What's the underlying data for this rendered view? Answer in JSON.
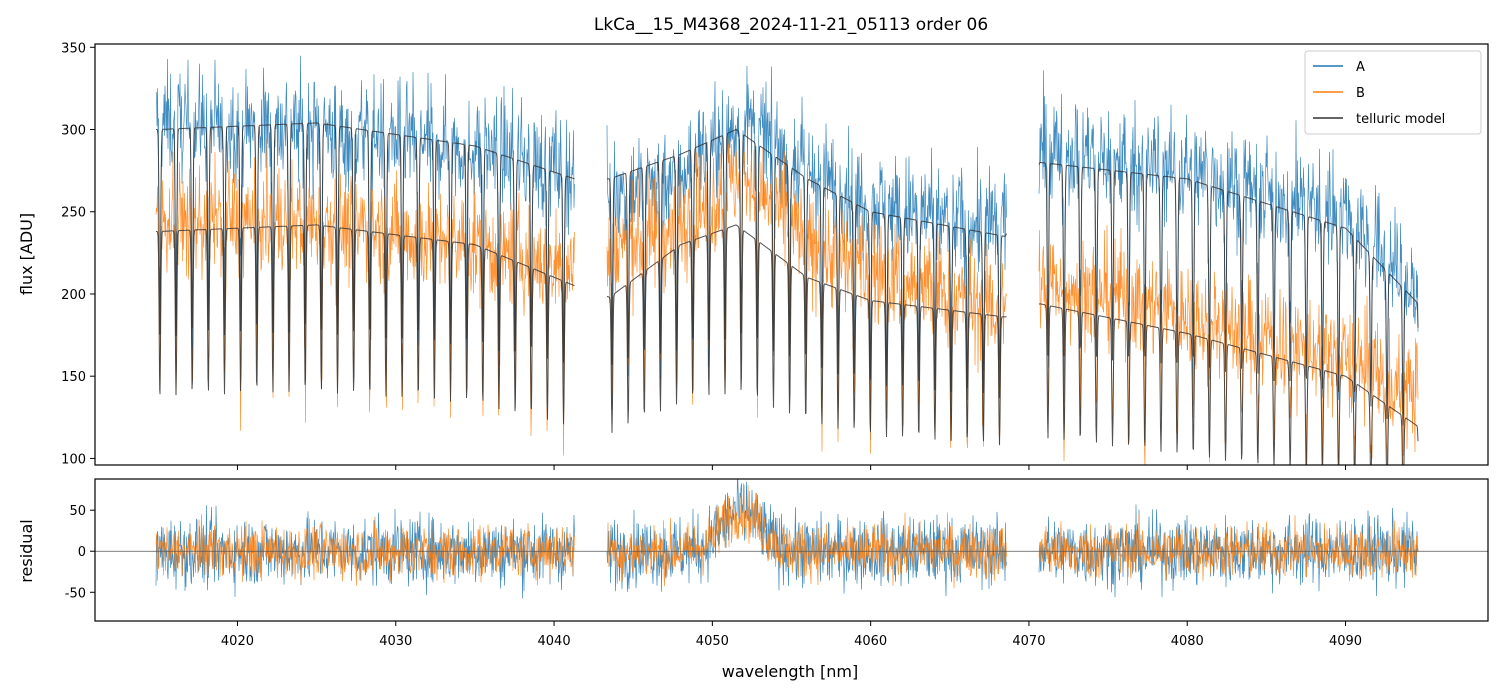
{
  "chart_data": [
    {
      "panel": "top",
      "type": "line",
      "title": "LkCa__15_M4368_2024-11-21_05113  order 06",
      "xlabel": "",
      "ylabel": "flux [ADU]",
      "xlim": [
        4011,
        4099
      ],
      "ylim": [
        96,
        352
      ],
      "yticks": [
        100,
        150,
        200,
        250,
        300,
        350
      ],
      "xticks": [
        4020,
        4030,
        4040,
        4050,
        4060,
        4070,
        4080,
        4090
      ],
      "x_tick_labels_shown": false,
      "grid": false,
      "legend": {
        "position": "top-right",
        "entries": [
          "A",
          "B",
          "telluric model"
        ]
      },
      "segments_nm": [
        [
          4014.8,
          4041.3
        ],
        [
          4043.3,
          4068.6
        ],
        [
          4070.6,
          4094.6
        ]
      ],
      "series": [
        {
          "name": "A",
          "color": "#1f77b4",
          "continuum_nm": [
            4015,
            4025,
            4035,
            4041,
            4044,
            4048,
            4052,
            4056,
            4060,
            4068,
            4071,
            4080,
            4090,
            4094.5
          ],
          "continuum_flux": [
            305,
            300,
            290,
            275,
            262,
            275,
            305,
            275,
            255,
            240,
            290,
            275,
            250,
            200
          ],
          "noise_flux": 24
        },
        {
          "name": "B",
          "color": "#ff7f0e",
          "continuum_nm": [
            4015,
            4025,
            4035,
            4041,
            4044,
            4048,
            4052,
            4056,
            4060,
            4068,
            4071,
            4080,
            4090,
            4094.5
          ],
          "continuum_flux": [
            245,
            245,
            230,
            215,
            230,
            240,
            275,
            230,
            215,
            190,
            210,
            190,
            160,
            140
          ],
          "noise_flux": 24
        },
        {
          "name": "telluric model",
          "color": "#333333",
          "envelopes": [
            {
              "continuum_nm": [
                4015,
                4025,
                4035,
                4041.3,
                4043.5,
                4048,
                4051.5,
                4056,
                4060,
                4068.5,
                4070.7,
                4080,
                4090,
                4094.5
              ],
              "continuum_flux": [
                300,
                304,
                290,
                270,
                270,
                285,
                300,
                270,
                250,
                235,
                280,
                270,
                240,
                195
              ]
            },
            {
              "continuum_nm": [
                4015,
                4025,
                4035,
                4041.3,
                4043.5,
                4048,
                4051.5,
                4056,
                4060,
                4068.5,
                4070.7,
                4080,
                4090,
                4094.5
              ],
              "continuum_flux": [
                238,
                242,
                230,
                205,
                198,
                230,
                242,
                210,
                196,
                186,
                194,
                176,
                150,
                120
              ]
            }
          ],
          "line_spacing_nm": 1.02,
          "line_depth_fraction": 0.3
        }
      ]
    },
    {
      "panel": "bottom",
      "type": "line",
      "xlabel": "wavelength [nm]",
      "ylabel": "residual",
      "xlim": [
        4011,
        4099
      ],
      "ylim": [
        -85,
        88
      ],
      "yticks": [
        -50,
        0,
        50
      ],
      "xticks": [
        4020,
        4030,
        4040,
        4050,
        4060,
        4070,
        4080,
        4090
      ],
      "grid": false,
      "reference_line_y": 0,
      "bump": {
        "center_nm": 4051.8,
        "width_nm": 1.2,
        "amplitude": 50
      },
      "series": [
        {
          "name": "A",
          "color": "#1f77b4",
          "noise_amplitude": 40
        },
        {
          "name": "B",
          "color": "#ff7f0e",
          "noise_amplitude": 32
        }
      ]
    }
  ]
}
